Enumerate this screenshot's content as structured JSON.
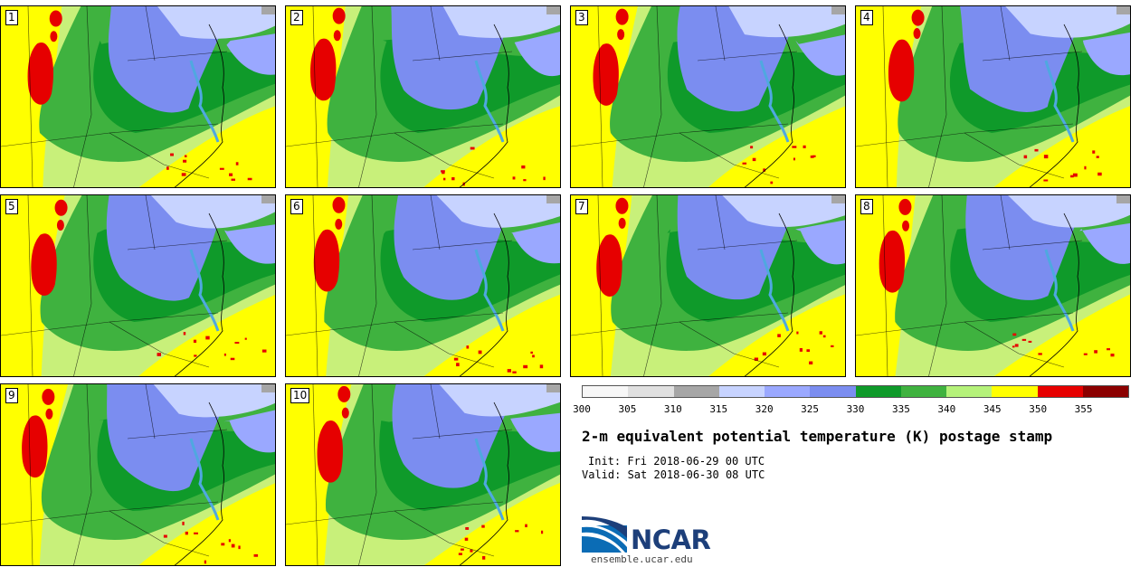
{
  "figure": {
    "title": "2-m equivalent potential temperature (K) postage stamp",
    "init_time": "Init: Fri 2018-06-29 00 UTC",
    "valid_time": "Valid: Sat 2018-06-30 08 UTC",
    "credit_url": "ensemble.ucar.edu",
    "logo_text": "NCAR"
  },
  "panels": [
    {
      "member": "1"
    },
    {
      "member": "2"
    },
    {
      "member": "3"
    },
    {
      "member": "4"
    },
    {
      "member": "5"
    },
    {
      "member": "6"
    },
    {
      "member": "7"
    },
    {
      "member": "8"
    },
    {
      "member": "9"
    },
    {
      "member": "10"
    }
  ],
  "colorbar": {
    "units": "K",
    "tick_labels": [
      "300",
      "305",
      "310",
      "315",
      "320",
      "325",
      "330",
      "335",
      "340",
      "345",
      "350",
      "355"
    ],
    "colors": [
      "#f7f7f7",
      "#e0e0e0",
      "#a6a6a6",
      "#c7d3ff",
      "#9aa8ff",
      "#7b8df0",
      "#0f9a2a",
      "#3fb23f",
      "#b5f27a",
      "#ffff00",
      "#e60000",
      "#8b0000"
    ]
  },
  "colors": {
    "theta_e_310": "#a6a6a6",
    "theta_e_315": "#c7d3ff",
    "theta_e_320": "#9aa8ff",
    "theta_e_325": "#7b8df0",
    "theta_e_330": "#0f9a2a",
    "theta_e_335": "#3fb23f",
    "theta_e_340": "#b5f27a",
    "theta_e_345": "#ffff00",
    "theta_e_350": "#e60000",
    "water": "#4fa8e0",
    "ncar_blue": "#1d3f7a"
  }
}
